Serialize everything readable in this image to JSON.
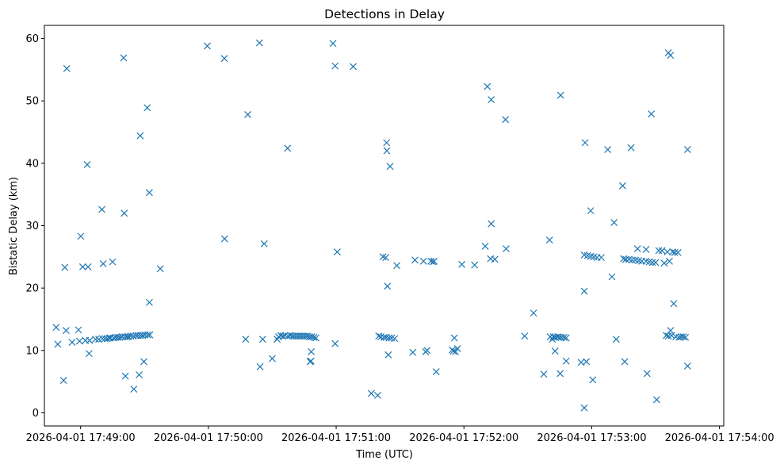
{
  "chart_data": {
    "type": "scatter",
    "title": "Detections in Delay",
    "xlabel": "Time (UTC)",
    "ylabel": "Bistatic Delay (km)",
    "xlim": [
      "2026-04-01 17:48:43",
      "2026-04-01 17:54:02"
    ],
    "ylim": [
      -2.1,
      62.1
    ],
    "xticks": [
      "2026-04-01 17:49:00",
      "2026-04-01 17:50:00",
      "2026-04-01 17:51:00",
      "2026-04-01 17:52:00",
      "2026-04-01 17:53:00",
      "2026-04-01 17:54:00"
    ],
    "yticks": [
      0,
      10,
      20,
      30,
      40,
      50,
      60
    ],
    "marker": "x",
    "color": "#1f77b4",
    "grid": false,
    "points": [
      [
        "2026-04-01 17:48:48.5",
        13.7
      ],
      [
        "2026-04-01 17:48:49.3",
        11.0
      ],
      [
        "2026-04-01 17:48:52.0",
        5.2
      ],
      [
        "2026-04-01 17:48:52.6",
        23.3
      ],
      [
        "2026-04-01 17:48:53.5",
        55.2
      ],
      [
        "2026-04-01 17:48:53.2",
        13.2
      ],
      [
        "2026-04-01 17:48:56.0",
        11.3
      ],
      [
        "2026-04-01 17:48:59.0",
        13.3
      ],
      [
        "2026-04-01 17:48:59.5",
        11.5
      ],
      [
        "2026-04-01 17:49:00.1",
        28.3
      ],
      [
        "2026-04-01 17:49:01.0",
        23.4
      ],
      [
        "2026-04-01 17:49:02.3",
        11.6
      ],
      [
        "2026-04-01 17:49:03.1",
        39.8
      ],
      [
        "2026-04-01 17:49:03.5",
        23.4
      ],
      [
        "2026-04-01 17:49:04.0",
        9.5
      ],
      [
        "2026-04-01 17:49:04.2",
        11.6
      ],
      [
        "2026-04-01 17:49:07.0",
        11.8
      ],
      [
        "2026-04-01 17:49:08.5",
        11.8
      ],
      [
        "2026-04-01 17:49:10.0",
        32.6
      ],
      [
        "2026-04-01 17:49:10.2",
        11.9
      ],
      [
        "2026-04-01 17:49:10.6",
        23.9
      ],
      [
        "2026-04-01 17:49:11.5",
        11.9
      ],
      [
        "2026-04-01 17:49:12.5",
        11.9
      ],
      [
        "2026-04-01 17:49:13.5",
        12.0
      ],
      [
        "2026-04-01 17:49:14.0",
        12.0
      ],
      [
        "2026-04-01 17:49:15.0",
        24.2
      ],
      [
        "2026-04-01 17:49:15.5",
        12.0
      ],
      [
        "2026-04-01 17:49:16.5",
        12.1
      ],
      [
        "2026-04-01 17:49:17.5",
        12.1
      ],
      [
        "2026-04-01 17:49:18.5",
        12.1
      ],
      [
        "2026-04-01 17:49:19.5",
        12.2
      ],
      [
        "2026-04-01 17:49:20.2",
        56.9
      ],
      [
        "2026-04-01 17:49:20.5",
        32.0
      ],
      [
        "2026-04-01 17:49:20.8",
        12.2
      ],
      [
        "2026-04-01 17:49:21.0",
        5.9
      ],
      [
        "2026-04-01 17:49:21.8",
        12.2
      ],
      [
        "2026-04-01 17:49:22.5",
        12.2
      ],
      [
        "2026-04-01 17:49:23.5",
        12.3
      ],
      [
        "2026-04-01 17:49:24.8",
        12.3
      ],
      [
        "2026-04-01 17:49:25.0",
        3.8
      ],
      [
        "2026-04-01 17:49:26.0",
        12.4
      ],
      [
        "2026-04-01 17:49:27.0",
        12.4
      ],
      [
        "2026-04-01 17:49:27.5",
        6.1
      ],
      [
        "2026-04-01 17:49:28.0",
        44.4
      ],
      [
        "2026-04-01 17:49:28.2",
        12.4
      ],
      [
        "2026-04-01 17:49:29.2",
        12.4
      ],
      [
        "2026-04-01 17:49:29.7",
        8.2
      ],
      [
        "2026-04-01 17:49:30.2",
        12.5
      ],
      [
        "2026-04-01 17:49:31.3",
        48.9
      ],
      [
        "2026-04-01 17:49:31.5",
        12.5
      ],
      [
        "2026-04-01 17:49:32.3",
        35.3
      ],
      [
        "2026-04-01 17:49:32.3",
        17.7
      ],
      [
        "2026-04-01 17:49:32.5",
        12.5
      ],
      [
        "2026-04-01 17:49:37.4",
        23.1
      ],
      [
        "2026-04-01 17:49:59.5",
        58.8
      ],
      [
        "2026-04-01 17:50:07.5",
        56.8
      ],
      [
        "2026-04-01 17:50:07.6",
        27.9
      ],
      [
        "2026-04-01 17:50:17.5",
        11.8
      ],
      [
        "2026-04-01 17:50:18.5",
        47.8
      ],
      [
        "2026-04-01 17:50:24.0",
        59.3
      ],
      [
        "2026-04-01 17:50:24.3",
        7.4
      ],
      [
        "2026-04-01 17:50:25.5",
        11.8
      ],
      [
        "2026-04-01 17:50:26.2",
        27.1
      ],
      [
        "2026-04-01 17:50:30.0",
        8.7
      ],
      [
        "2026-04-01 17:50:32.3",
        11.8
      ],
      [
        "2026-04-01 17:50:33.0",
        12.2
      ],
      [
        "2026-04-01 17:50:34.0",
        12.4
      ],
      [
        "2026-04-01 17:50:35.0",
        12.3
      ],
      [
        "2026-04-01 17:50:36.0",
        12.4
      ],
      [
        "2026-04-01 17:50:37.2",
        42.4
      ],
      [
        "2026-04-01 17:50:37.5",
        12.3
      ],
      [
        "2026-04-01 17:50:38.5",
        12.4
      ],
      [
        "2026-04-01 17:50:39.5",
        12.3
      ],
      [
        "2026-04-01 17:50:40.5",
        12.3
      ],
      [
        "2026-04-01 17:50:41.5",
        12.3
      ],
      [
        "2026-04-01 17:50:42.5",
        12.3
      ],
      [
        "2026-04-01 17:50:43.5",
        12.3
      ],
      [
        "2026-04-01 17:50:44.5",
        12.3
      ],
      [
        "2026-04-01 17:50:45.5",
        12.3
      ],
      [
        "2026-04-01 17:50:46.5",
        12.3
      ],
      [
        "2026-04-01 17:50:47.5",
        12.2
      ],
      [
        "2026-04-01 17:50:47.8",
        8.2
      ],
      [
        "2026-04-01 17:50:48.3",
        9.8
      ],
      [
        "2026-04-01 17:50:48.5",
        12.2
      ],
      [
        "2026-04-01 17:50:48.2",
        8.3
      ],
      [
        "2026-04-01 17:50:49.5",
        12.1
      ],
      [
        "2026-04-01 17:50:50.5",
        12.0
      ],
      [
        "2026-04-01 17:50:58.5",
        59.2
      ],
      [
        "2026-04-01 17:50:59.5",
        55.6
      ],
      [
        "2026-04-01 17:50:59.5",
        11.1
      ],
      [
        "2026-04-01 17:51:00.5",
        25.8
      ],
      [
        "2026-04-01 17:51:08.0",
        55.5
      ],
      [
        "2026-04-01 17:51:16.5",
        3.1
      ],
      [
        "2026-04-01 17:51:19.5",
        2.8
      ],
      [
        "2026-04-01 17:51:20.0",
        12.3
      ],
      [
        "2026-04-01 17:51:21.0",
        12.2
      ],
      [
        "2026-04-01 17:51:22.0",
        25.0
      ],
      [
        "2026-04-01 17:51:22.5",
        12.1
      ],
      [
        "2026-04-01 17:51:23.3",
        24.9
      ],
      [
        "2026-04-01 17:51:23.7",
        43.3
      ],
      [
        "2026-04-01 17:51:23.8",
        42.0
      ],
      [
        "2026-04-01 17:51:23.5",
        12.1
      ],
      [
        "2026-04-01 17:51:24.1",
        20.3
      ],
      [
        "2026-04-01 17:51:24.5",
        9.3
      ],
      [
        "2026-04-01 17:51:24.8",
        12.0
      ],
      [
        "2026-04-01 17:51:25.3",
        39.5
      ],
      [
        "2026-04-01 17:51:26.0",
        12.0
      ],
      [
        "2026-04-01 17:51:27.5",
        11.9
      ],
      [
        "2026-04-01 17:51:28.5",
        23.6
      ],
      [
        "2026-04-01 17:51:36.0",
        9.7
      ],
      [
        "2026-04-01 17:51:37.0",
        24.5
      ],
      [
        "2026-04-01 17:51:41.0",
        24.3
      ],
      [
        "2026-04-01 17:51:42.0",
        9.8
      ],
      [
        "2026-04-01 17:51:42.7",
        10.0
      ],
      [
        "2026-04-01 17:51:44.5",
        24.3
      ],
      [
        "2026-04-01 17:51:45.5",
        24.2
      ],
      [
        "2026-04-01 17:51:46.0",
        24.3
      ],
      [
        "2026-04-01 17:51:47.0",
        6.6
      ],
      [
        "2026-04-01 17:51:54.5",
        10.1
      ],
      [
        "2026-04-01 17:51:55.0",
        9.9
      ],
      [
        "2026-04-01 17:51:55.5",
        12.0
      ],
      [
        "2026-04-01 17:51:56.0",
        9.8
      ],
      [
        "2026-04-01 17:51:57.0",
        10.3
      ],
      [
        "2026-04-01 17:51:59.0",
        23.8
      ],
      [
        "2026-04-01 17:52:05.0",
        23.7
      ],
      [
        "2026-04-01 17:52:10.0",
        26.7
      ],
      [
        "2026-04-01 17:52:11.0",
        52.3
      ],
      [
        "2026-04-01 17:52:12.8",
        50.2
      ],
      [
        "2026-04-01 17:52:12.8",
        30.3
      ],
      [
        "2026-04-01 17:52:12.5",
        24.7
      ],
      [
        "2026-04-01 17:52:14.5",
        24.6
      ],
      [
        "2026-04-01 17:52:19.5",
        47.0
      ],
      [
        "2026-04-01 17:52:19.8",
        26.3
      ],
      [
        "2026-04-01 17:52:28.5",
        12.3
      ],
      [
        "2026-04-01 17:52:32.7",
        16.0
      ],
      [
        "2026-04-01 17:52:37.5",
        6.2
      ],
      [
        "2026-04-01 17:52:40.2",
        27.7
      ],
      [
        "2026-04-01 17:52:40.5",
        12.2
      ],
      [
        "2026-04-01 17:52:41.5",
        11.8
      ],
      [
        "2026-04-01 17:52:42.0",
        12.2
      ],
      [
        "2026-04-01 17:52:42.8",
        9.9
      ],
      [
        "2026-04-01 17:52:43.0",
        12.1
      ],
      [
        "2026-04-01 17:52:44.0",
        12.2
      ],
      [
        "2026-04-01 17:52:44.8",
        12.1
      ],
      [
        "2026-04-01 17:52:45.2",
        6.3
      ],
      [
        "2026-04-01 17:52:45.4",
        50.9
      ],
      [
        "2026-04-01 17:52:45.8",
        12.1
      ],
      [
        "2026-04-01 17:52:47.0",
        12.1
      ],
      [
        "2026-04-01 17:52:48.0",
        8.3
      ],
      [
        "2026-04-01 17:52:48.0",
        12.0
      ],
      [
        "2026-04-01 17:52:55.0",
        8.1
      ],
      [
        "2026-04-01 17:52:56.5",
        19.5
      ],
      [
        "2026-04-01 17:52:56.5",
        25.3
      ],
      [
        "2026-04-01 17:52:56.5",
        0.8
      ],
      [
        "2026-04-01 17:52:56.9",
        43.3
      ],
      [
        "2026-04-01 17:52:57.5",
        8.2
      ],
      [
        "2026-04-01 17:52:58.0",
        25.2
      ],
      [
        "2026-04-01 17:52:59.5",
        25.1
      ],
      [
        "2026-04-01 17:52:59.5",
        32.4
      ],
      [
        "2026-04-01 17:53:00.5",
        5.3
      ],
      [
        "2026-04-01 17:53:01.0",
        25.0
      ],
      [
        "2026-04-01 17:53:02.5",
        24.9
      ],
      [
        "2026-04-01 17:53:04.5",
        24.9
      ],
      [
        "2026-04-01 17:53:07.5",
        42.2
      ],
      [
        "2026-04-01 17:53:09.5",
        21.8
      ],
      [
        "2026-04-01 17:53:10.5",
        30.5
      ],
      [
        "2026-04-01 17:53:11.5",
        11.8
      ],
      [
        "2026-04-01 17:53:14.5",
        36.4
      ],
      [
        "2026-04-01 17:53:15.0",
        24.7
      ],
      [
        "2026-04-01 17:53:15.5",
        8.2
      ],
      [
        "2026-04-01 17:53:16.0",
        24.6
      ],
      [
        "2026-04-01 17:53:17.5",
        24.6
      ],
      [
        "2026-04-01 17:53:18.5",
        42.5
      ],
      [
        "2026-04-01 17:53:19.0",
        24.5
      ],
      [
        "2026-04-01 17:53:20.5",
        24.5
      ],
      [
        "2026-04-01 17:53:21.5",
        26.3
      ],
      [
        "2026-04-01 17:53:22.0",
        24.4
      ],
      [
        "2026-04-01 17:53:23.5",
        24.3
      ],
      [
        "2026-04-01 17:53:25.5",
        26.2
      ],
      [
        "2026-04-01 17:53:25.5",
        24.3
      ],
      [
        "2026-04-01 17:53:26.0",
        6.3
      ],
      [
        "2026-04-01 17:53:27.0",
        24.2
      ],
      [
        "2026-04-01 17:53:28.0",
        47.9
      ],
      [
        "2026-04-01 17:53:28.5",
        24.1
      ],
      [
        "2026-04-01 17:53:30.0",
        24.1
      ],
      [
        "2026-04-01 17:53:30.5",
        2.1
      ],
      [
        "2026-04-01 17:53:31.5",
        26.0
      ],
      [
        "2026-04-01 17:53:33.0",
        26.0
      ],
      [
        "2026-04-01 17:53:34.0",
        24.0
      ],
      [
        "2026-04-01 17:53:35.0",
        12.4
      ],
      [
        "2026-04-01 17:53:35.5",
        25.8
      ],
      [
        "2026-04-01 17:53:36.0",
        57.7
      ],
      [
        "2026-04-01 17:53:36.0",
        12.3
      ],
      [
        "2026-04-01 17:53:36.5",
        24.3
      ],
      [
        "2026-04-01 17:53:37.0",
        57.3
      ],
      [
        "2026-04-01 17:53:37.0",
        13.2
      ],
      [
        "2026-04-01 17:53:37.5",
        12.4
      ],
      [
        "2026-04-01 17:53:38.0",
        25.8
      ],
      [
        "2026-04-01 17:53:38.5",
        17.5
      ],
      [
        "2026-04-01 17:53:39.0",
        25.7
      ],
      [
        "2026-04-01 17:53:39.5",
        12.2
      ],
      [
        "2026-04-01 17:53:40.5",
        25.7
      ],
      [
        "2026-04-01 17:53:41.0",
        12.1
      ],
      [
        "2026-04-01 17:53:42.0",
        12.2
      ],
      [
        "2026-04-01 17:53:43.0",
        12.2
      ],
      [
        "2026-04-01 17:53:44.0",
        12.1
      ],
      [
        "2026-04-01 17:53:45.0",
        42.2
      ],
      [
        "2026-04-01 17:53:45.0",
        7.5
      ]
    ]
  }
}
